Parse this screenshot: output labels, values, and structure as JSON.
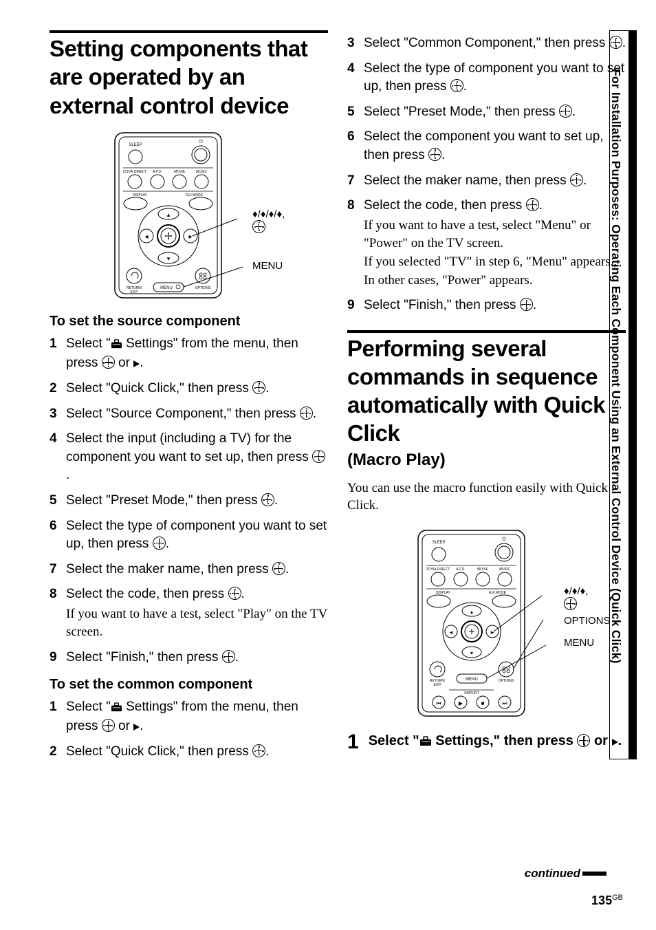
{
  "page_number": "135",
  "page_suffix": "GB",
  "continued": "continued",
  "side_text": "For Installation Purposes: Operating Each Component Using an External Control Device (Quick Click)",
  "left": {
    "title": "Setting components that are operated by an external control device",
    "remote_labels": {
      "arrows": "V/v/B/b,",
      "menu": "MENU"
    },
    "sub1": "To set the source component",
    "steps1": [
      {
        "n": "1",
        "t": "Select \"",
        "t2": " Settings\" from the menu, then press ",
        "t3": " or ",
        "icon_before": true,
        "arrow_after": true
      },
      {
        "n": "2",
        "t": "Select \"Quick Click,\" then press "
      },
      {
        "n": "3",
        "t": "Select \"Source Component,\" then press "
      },
      {
        "n": "4",
        "t": "Select the input (including a TV) for the component you want to set up, then press "
      },
      {
        "n": "5",
        "t": "Select \"Preset Mode,\" then press "
      },
      {
        "n": "6",
        "t": "Select the type of component you want to set up, then press "
      },
      {
        "n": "7",
        "t": "Select the maker name, then press "
      },
      {
        "n": "8",
        "t": "Select the code, then press ",
        "note": "If you want to have a test, select \"Play\" on the TV screen."
      },
      {
        "n": "9",
        "t": "Select \"Finish,\" then press "
      }
    ],
    "sub2": "To set the common component",
    "steps2": [
      {
        "n": "1",
        "t": "Select \"",
        "t2": " Settings\" from the menu, then press ",
        "t3": " or ",
        "icon_before": true,
        "arrow_after": true
      },
      {
        "n": "2",
        "t": "Select \"Quick Click,\" then press "
      }
    ]
  },
  "right": {
    "steps_cont": [
      {
        "n": "3",
        "t": "Select \"Common Component,\" then press "
      },
      {
        "n": "4",
        "t": "Select the type of component you want to set up, then press "
      },
      {
        "n": "5",
        "t": "Select \"Preset Mode,\" then press "
      },
      {
        "n": "6",
        "t": "Select the component you want to set up, then press "
      },
      {
        "n": "7",
        "t": "Select the maker name, then press "
      },
      {
        "n": "8",
        "t": "Select the code, then press ",
        "note": "If you want to have a test, select \"Menu\" or \"Power\" on the TV screen.\nIf you selected \"TV\" in step 6, \"Menu\" appears., In other cases, \"Power\" appears."
      },
      {
        "n": "9",
        "t": "Select \"Finish,\" then press "
      }
    ],
    "title2": "Performing several commands in sequence automatically with Quick Click",
    "macro": "(Macro Play)",
    "intro": "You can use the macro function easily with Quick Click.",
    "remote_labels": {
      "arrows": "V/v/b,",
      "options": "OPTIONS",
      "menu": "MENU"
    },
    "bigstep": {
      "n": "1",
      "t1": "Select \"",
      "t2": " Settings,\" then press ",
      "t3": " or "
    }
  },
  "remote": {
    "top_labels": [
      "SLEEP"
    ],
    "row_labels": [
      "2CH/A.DIRECT",
      "A.F.D.",
      "MOVIE",
      "MUSIC"
    ],
    "row2_labels": [
      "DISPLAY",
      "GUI MODE"
    ],
    "bottom_labels": [
      "RETURN/\nEXIT",
      "MENU",
      "OPTIONS"
    ],
    "dmport": "DMPORT"
  }
}
